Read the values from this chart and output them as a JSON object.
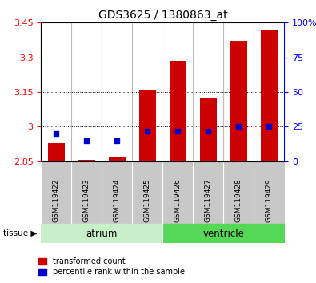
{
  "title": "GDS3625 / 1380863_at",
  "samples": [
    "GSM119422",
    "GSM119423",
    "GSM119424",
    "GSM119425",
    "GSM119426",
    "GSM119427",
    "GSM119428",
    "GSM119429"
  ],
  "groups": [
    "atrium",
    "atrium",
    "atrium",
    "atrium",
    "ventricle",
    "ventricle",
    "ventricle",
    "ventricle"
  ],
  "group_labels": [
    "atrium",
    "ventricle"
  ],
  "group_colors": [
    "#c8f0c8",
    "#55d855"
  ],
  "red_values": [
    2.93,
    2.855,
    2.865,
    3.16,
    3.285,
    3.125,
    3.37,
    3.415
  ],
  "blue_percentiles": [
    20,
    15,
    15,
    22,
    22,
    22,
    25,
    25
  ],
  "ymin": 2.85,
  "ymax": 3.45,
  "yticks": [
    2.85,
    3.0,
    3.15,
    3.3,
    3.45
  ],
  "ytick_labels": [
    "2.85",
    "3",
    "3.15",
    "3.3",
    "3.45"
  ],
  "right_yticks": [
    0,
    25,
    50,
    75,
    100
  ],
  "right_ytick_labels": [
    "0",
    "25",
    "50",
    "75",
    "100%"
  ],
  "bar_color": "#cc0000",
  "blue_color": "#0000cc",
  "bar_width": 0.55,
  "legend_red": "transformed count",
  "legend_blue": "percentile rank within the sample",
  "sample_bg": "#c8c8c8"
}
